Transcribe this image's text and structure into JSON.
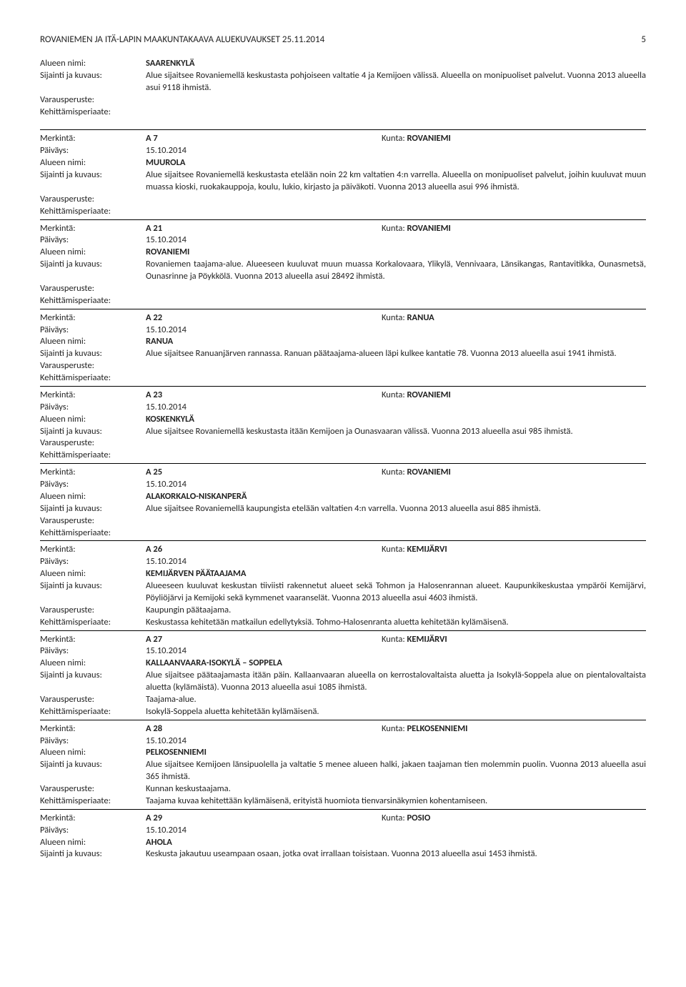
{
  "header": {
    "title": "ROVANIEMEN JA ITÄ-LAPIN MAAKUNTAKAAVA ALUEKUVAUKSET 25.11.2014",
    "page": "5"
  },
  "labels": {
    "alueen_nimi": "Alueen nimi:",
    "sijainti": "Sijainti ja kuvaus:",
    "varausperuste": "Varausperuste:",
    "kehittamis": "Kehittämisperiaate:",
    "merkinta": "Merkintä:",
    "paivays": "Päiväys:",
    "kunta": "Kunta: "
  },
  "intro": {
    "name": "SAARENKYLÄ",
    "sijainti": "Alue sijaitsee Rovaniemellä keskustasta pohjoiseen valtatie 4 ja Kemijoen välissä. Alueella on monipuoliset palvelut. Vuonna 2013 alueella asui 9118 ihmistä."
  },
  "entries": [
    {
      "code": "A 7",
      "kunta": "ROVANIEMI",
      "paivays": "15.10.2014",
      "name": "MUUROLA",
      "sijainti": "Alue sijaitsee Rovaniemellä keskustasta etelään noin 22 km valtatien 4:n varrella. Alueella on monipuoliset palvelut, joihin kuuluvat muun muassa kioski, ruokakauppoja, koulu, lukio, kirjasto ja päiväkoti. Vuonna 2013 alueella asui 996 ihmistä.",
      "varaus": "",
      "kehit": ""
    },
    {
      "code": "A 21",
      "kunta": "ROVANIEMI",
      "paivays": "15.10.2014",
      "name": "ROVANIEMI",
      "sijainti": "Rovaniemen taajama-alue. Alueeseen kuuluvat muun muassa Korkalovaara, Ylikylä, Vennivaara, Länsikangas, Rantavitikka, Ounasmetsä, Ounasrinne ja Pöykkölä. Vuonna 2013 alueella asui 28492 ihmistä.",
      "varaus": "",
      "kehit": ""
    },
    {
      "code": "A 22",
      "kunta": "RANUA",
      "paivays": "15.10.2014",
      "name": "RANUA",
      "sijainti": "Alue sijaitsee Ranuanjärven rannassa. Ranuan päätaajama-alueen läpi kulkee kantatie 78. Vuonna 2013 alueella asui 1941 ihmistä.",
      "varaus": "",
      "kehit": ""
    },
    {
      "code": "A 23",
      "kunta": "ROVANIEMI",
      "paivays": "15.10.2014",
      "name": "KOSKENKYLÄ",
      "sijainti": "Alue sijaitsee Rovaniemellä keskustasta itään Kemijoen ja Ounasvaaran välissä. Vuonna 2013 alueella asui 985 ihmistä.",
      "varaus": "",
      "kehit": ""
    },
    {
      "code": "A 25",
      "kunta": "ROVANIEMI",
      "paivays": "15.10.2014",
      "name": "ALAKORKALO-NISKANPERÄ",
      "sijainti": "Alue sijaitsee Rovaniemellä kaupungista etelään valtatien 4:n varrella. Vuonna 2013 alueella asui 885 ihmistä.",
      "varaus": "",
      "kehit": ""
    },
    {
      "code": "A 26",
      "kunta": "KEMIJÄRVI",
      "paivays": "15.10.2014",
      "name": "KEMIJÄRVEN PÄÄTAAJAMA",
      "sijainti": "Alueeseen kuuluvat keskustan tiiviisti rakennetut alueet sekä Tohmon ja Halosenrannan alueet. Kaupunkikeskustaa ympäröi Kemijärvi, Pöyliöjärvi ja Kemijoki sekä kymmenet vaaranselät. Vuonna 2013 alueella asui 4603 ihmistä.",
      "varaus": "Kaupungin päätaajama.",
      "kehit": "Keskustassa kehitetään matkailun edellytyksiä. Tohmo-Halosenranta aluetta kehitetään kylämäisenä."
    },
    {
      "code": "A 27",
      "kunta": "KEMIJÄRVI",
      "paivays": "15.10.2014",
      "name": "KALLAANVAARA-ISOKYLÄ – SOPPELA",
      "sijainti": "Alue sijaitsee päätaajamasta itään päin. Kallaanvaaran alueella on kerrostalovaltaista aluetta ja Isokylä-Soppela alue on pientalovaltaista aluetta (kylämäistä). Vuonna 2013 alueella asui 1085 ihmistä.",
      "varaus": "Taajama-alue.",
      "kehit": "Isokylä-Soppela aluetta kehitetään kylämäisenä."
    },
    {
      "code": "A 28",
      "kunta": "PELKOSENNIEMI",
      "paivays": "15.10.2014",
      "name": "PELKOSENNIEMI",
      "sijainti": "Alue sijaitsee Kemijoen länsipuolella ja valtatie 5 menee alueen halki, jakaen taajaman tien molemmin puolin. Vuonna 2013 alueella asui 365 ihmistä.",
      "varaus": "Kunnan keskustaajama.",
      "kehit": "Taajama kuvaa kehitettään kylämäisenä, erityistä huomiota tienvarsinäkymien kohentamiseen."
    },
    {
      "code": "A 29",
      "kunta": "POSIO",
      "paivays": "15.10.2014",
      "name": "AHOLA",
      "sijainti": "Keskusta jakautuu useampaan osaan, jotka ovat irrallaan toisistaan. Vuonna 2013 alueella asui 1453 ihmistä.",
      "varaus": null,
      "kehit": null
    }
  ]
}
